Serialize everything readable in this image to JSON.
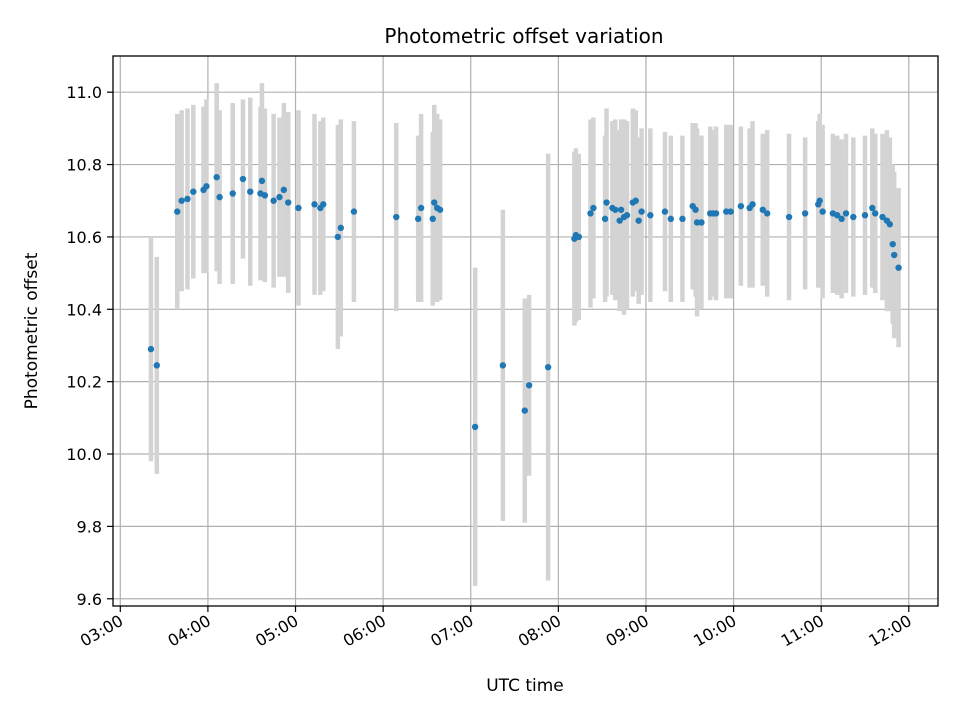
{
  "chart_data": {
    "type": "scatter",
    "title": "Photometric offset variation",
    "xlabel": "UTC time",
    "ylabel": "Photometric offset",
    "x_tick_labels": [
      "03:00",
      "04:00",
      "05:00",
      "06:00",
      "07:00",
      "08:00",
      "09:00",
      "10:00",
      "11:00",
      "12:00"
    ],
    "y_tick_labels": [
      "9.6",
      "9.8",
      "10.0",
      "10.2",
      "10.4",
      "10.6",
      "10.8",
      "11.0"
    ],
    "y_ticks": [
      9.6,
      9.8,
      10.0,
      10.2,
      10.4,
      10.6,
      10.8,
      11.0
    ],
    "xlim": [
      "02:55",
      "12:20"
    ],
    "ylim": [
      9.58,
      11.1
    ],
    "grid": true,
    "point_color": "#1f77b4",
    "errorbar_color": "#d3d3d3",
    "series": [
      {
        "x": [
          "03:21",
          "03:25",
          "03:39",
          "03:42",
          "03:46",
          "03:50",
          "03:57",
          "03:59",
          "04:06",
          "04:08",
          "04:17",
          "04:24",
          "04:29",
          "04:36",
          "04:37",
          "04:39",
          "04:45",
          "04:49",
          "04:52",
          "04:55",
          "05:02",
          "05:13",
          "05:17",
          "05:19",
          "05:29",
          "05:31",
          "05:40",
          "06:09",
          "06:24",
          "06:26",
          "06:34",
          "06:35",
          "06:37",
          "06:39",
          "07:03",
          "07:22",
          "07:37",
          "07:40",
          "07:53",
          "08:11",
          "08:12",
          "08:14",
          "08:22",
          "08:24",
          "08:32",
          "08:33",
          "08:37",
          "08:39",
          "08:42",
          "08:43",
          "08:45",
          "08:47",
          "08:51",
          "08:53",
          "08:55",
          "08:57",
          "09:03",
          "09:13",
          "09:17",
          "09:25",
          "09:32",
          "09:34",
          "09:35",
          "09:38",
          "09:44",
          "09:46",
          "09:48",
          "09:55",
          "09:58",
          "10:05",
          "10:11",
          "10:13",
          "10:20",
          "10:23",
          "10:38",
          "10:49",
          "10:58",
          "10:59",
          "11:01",
          "11:08",
          "11:11",
          "11:14",
          "11:17",
          "11:22",
          "11:30",
          "11:35",
          "11:37",
          "11:42",
          "11:45",
          "11:47",
          "11:49",
          "11:50",
          "11:53"
        ],
        "y": [
          10.29,
          10.245,
          10.67,
          10.7,
          10.705,
          10.725,
          10.73,
          10.74,
          10.765,
          10.71,
          10.72,
          10.76,
          10.725,
          10.72,
          10.755,
          10.715,
          10.7,
          10.71,
          10.73,
          10.695,
          10.68,
          10.69,
          10.68,
          10.69,
          10.6,
          10.625,
          10.67,
          10.655,
          10.65,
          10.68,
          10.65,
          10.695,
          10.68,
          10.675,
          10.075,
          10.245,
          10.12,
          10.19,
          10.24,
          10.595,
          10.605,
          10.6,
          10.665,
          10.68,
          10.65,
          10.695,
          10.68,
          10.675,
          10.645,
          10.675,
          10.655,
          10.66,
          10.695,
          10.7,
          10.645,
          10.67,
          10.66,
          10.67,
          10.65,
          10.65,
          10.685,
          10.675,
          10.64,
          10.64,
          10.665,
          10.665,
          10.665,
          10.67,
          10.67,
          10.685,
          10.68,
          10.69,
          10.675,
          10.665,
          10.655,
          10.665,
          10.69,
          10.7,
          10.67,
          10.665,
          10.66,
          10.65,
          10.665,
          10.655,
          10.66,
          10.68,
          10.665,
          10.655,
          10.645,
          10.635,
          10.58,
          10.55,
          10.515
        ],
        "err": [
          0.31,
          0.3,
          0.27,
          0.25,
          0.25,
          0.24,
          0.23,
          0.24,
          0.26,
          0.24,
          0.25,
          0.22,
          0.26,
          0.24,
          0.27,
          0.24,
          0.24,
          0.22,
          0.24,
          0.25,
          0.27,
          0.25,
          0.24,
          0.24,
          0.31,
          0.3,
          0.25,
          0.26,
          0.23,
          0.26,
          0.24,
          0.27,
          0.26,
          0.25,
          0.44,
          0.43,
          0.31,
          0.25,
          0.59,
          0.24,
          0.24,
          0.23,
          0.26,
          0.25,
          0.23,
          0.26,
          0.24,
          0.25,
          0.25,
          0.25,
          0.27,
          0.26,
          0.26,
          0.25,
          0.23,
          0.23,
          0.24,
          0.22,
          0.23,
          0.23,
          0.23,
          0.24,
          0.26,
          0.24,
          0.24,
          0.23,
          0.24,
          0.24,
          0.24,
          0.22,
          0.22,
          0.23,
          0.21,
          0.23,
          0.23,
          0.21,
          0.23,
          0.24,
          0.24,
          0.22,
          0.22,
          0.22,
          0.22,
          0.22,
          0.22,
          0.22,
          0.22,
          0.23,
          0.25,
          0.24,
          0.22,
          0.23,
          0.22
        ]
      }
    ]
  }
}
